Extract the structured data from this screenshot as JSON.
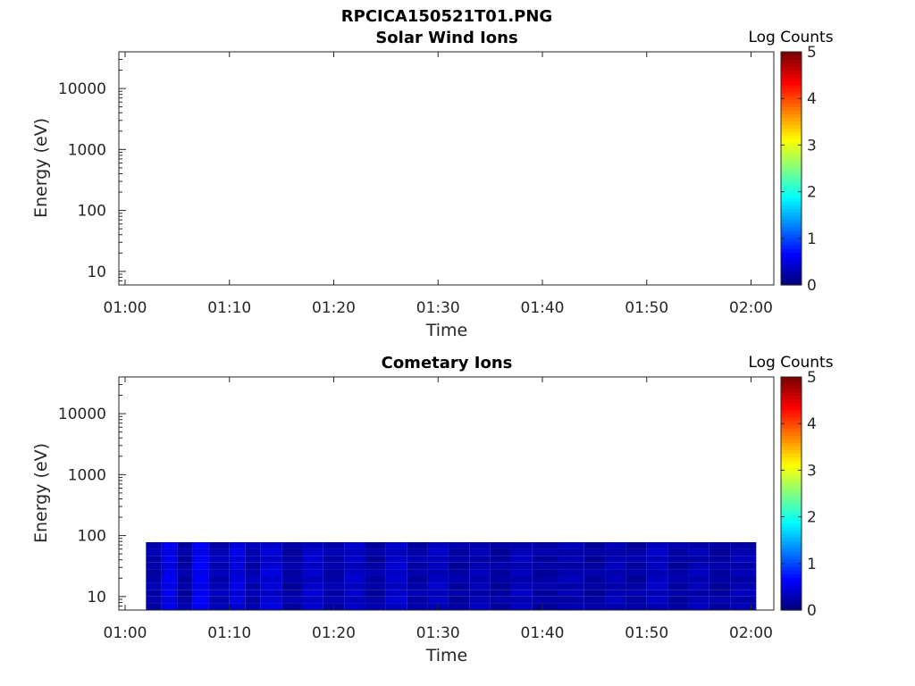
{
  "figure_title": "RPCICA150521T01.PNG",
  "chart_data": [
    {
      "type": "heatmap",
      "title": "Solar Wind Ions",
      "xlabel": "Time",
      "ylabel": "Energy (eV)",
      "x_ticks": [
        "01:00",
        "01:10",
        "01:20",
        "01:30",
        "01:40",
        "01:50",
        "02:00"
      ],
      "y_ticks": [
        "10",
        "100",
        "1000",
        "10000"
      ],
      "ylim": [
        6,
        40000
      ],
      "y_scale": "log",
      "colorbar": {
        "label": "Log Counts",
        "ticks": [
          "0",
          "1",
          "2",
          "3",
          "4",
          "5"
        ],
        "range": [
          0,
          5
        ],
        "colormap": "jet"
      },
      "cells": []
    },
    {
      "type": "heatmap",
      "title": "Cometary Ions",
      "xlabel": "Time",
      "ylabel": "Energy (eV)",
      "x_ticks": [
        "01:00",
        "01:10",
        "01:20",
        "01:30",
        "01:40",
        "01:50",
        "02:00"
      ],
      "y_ticks": [
        "10",
        "100",
        "1000",
        "10000"
      ],
      "ylim": [
        6,
        40000
      ],
      "y_scale": "log",
      "colorbar": {
        "label": "Log Counts",
        "ticks": [
          "0",
          "1",
          "2",
          "3",
          "4",
          "5"
        ],
        "range": [
          0,
          5
        ],
        "colormap": "jet"
      },
      "time_range_min": [
        2,
        60.5
      ],
      "energy_range_ev": [
        6,
        78
      ],
      "segments": [
        {
          "t0": 2.0,
          "t1": 3.5,
          "v": 0.15
        },
        {
          "t0": 3.5,
          "t1": 5.0,
          "v": 0.45
        },
        {
          "t0": 5.0,
          "t1": 6.5,
          "v": 0.12
        },
        {
          "t0": 6.5,
          "t1": 8.0,
          "v": 0.5
        },
        {
          "t0": 8.0,
          "t1": 10.0,
          "v": 0.2
        },
        {
          "t0": 10.0,
          "t1": 11.5,
          "v": 0.4
        },
        {
          "t0": 11.5,
          "t1": 13.0,
          "v": 0.18
        },
        {
          "t0": 13.0,
          "t1": 15.0,
          "v": 0.35
        },
        {
          "t0": 15.0,
          "t1": 17.0,
          "v": 0.12
        },
        {
          "t0": 17.0,
          "t1": 19.0,
          "v": 0.3
        },
        {
          "t0": 19.0,
          "t1": 21.0,
          "v": 0.15
        },
        {
          "t0": 21.0,
          "t1": 23.0,
          "v": 0.28
        },
        {
          "t0": 23.0,
          "t1": 25.0,
          "v": 0.12
        },
        {
          "t0": 25.0,
          "t1": 27.0,
          "v": 0.3
        },
        {
          "t0": 27.0,
          "t1": 29.0,
          "v": 0.14
        },
        {
          "t0": 29.0,
          "t1": 31.0,
          "v": 0.25
        },
        {
          "t0": 31.0,
          "t1": 33.0,
          "v": 0.12
        },
        {
          "t0": 33.0,
          "t1": 35.0,
          "v": 0.2
        },
        {
          "t0": 35.0,
          "t1": 37.0,
          "v": 0.1
        },
        {
          "t0": 37.0,
          "t1": 39.0,
          "v": 0.22
        },
        {
          "t0": 39.0,
          "t1": 41.5,
          "v": 0.12
        },
        {
          "t0": 41.5,
          "t1": 44.0,
          "v": 0.18
        },
        {
          "t0": 44.0,
          "t1": 46.0,
          "v": 0.1
        },
        {
          "t0": 46.0,
          "t1": 48.0,
          "v": 0.2
        },
        {
          "t0": 48.0,
          "t1": 50.0,
          "v": 0.12
        },
        {
          "t0": 50.0,
          "t1": 52.0,
          "v": 0.25
        },
        {
          "t0": 52.0,
          "t1": 54.0,
          "v": 0.12
        },
        {
          "t0": 54.0,
          "t1": 56.0,
          "v": 0.2
        },
        {
          "t0": 56.0,
          "t1": 58.0,
          "v": 0.1
        },
        {
          "t0": 58.0,
          "t1": 60.5,
          "v": 0.18
        }
      ]
    }
  ]
}
